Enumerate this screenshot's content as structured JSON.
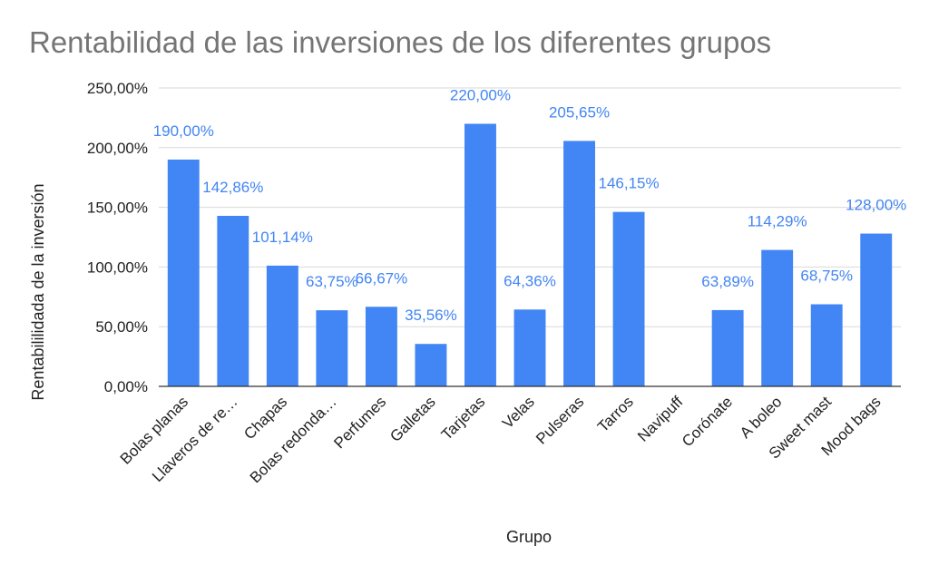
{
  "chart_data": {
    "type": "bar",
    "title": "Rentabilidad de las inversiones de los diferentes grupos",
    "xlabel": "Grupo",
    "ylabel": "Rentabililidada de la inversión",
    "ylim": [
      0,
      250
    ],
    "yticks": [
      0,
      50,
      100,
      150,
      200,
      250
    ],
    "ytick_labels": [
      "0,00%",
      "50,00%",
      "100,00%",
      "150,00%",
      "200,00%",
      "250,00%"
    ],
    "grid": true,
    "legend": "none",
    "bar_color": "#4285f4",
    "label_color": "#4285f4",
    "categories": [
      "Bolas planas",
      "Llaveros de re…",
      "Chapas",
      "Bolas redonda…",
      "Perfumes",
      "Galletas",
      "Tarjetas",
      "Velas",
      "Pulseras",
      "Tarros",
      "Navipuff",
      "Corónate",
      "A boleo",
      "Sweet mast",
      "Mood bags"
    ],
    "values": [
      190.0,
      142.86,
      101.14,
      63.75,
      66.67,
      35.56,
      220.0,
      64.36,
      205.65,
      146.15,
      0,
      63.89,
      114.29,
      68.75,
      128.0
    ],
    "data_labels": [
      "190,00%",
      "142,86%",
      "101,14%",
      "63,75%",
      "66,67%",
      "35,56%",
      "220,00%",
      "64,36%",
      "205,65%",
      "146,15%",
      "",
      "63,89%",
      "114,29%",
      "68,75%",
      "128,00%"
    ]
  }
}
